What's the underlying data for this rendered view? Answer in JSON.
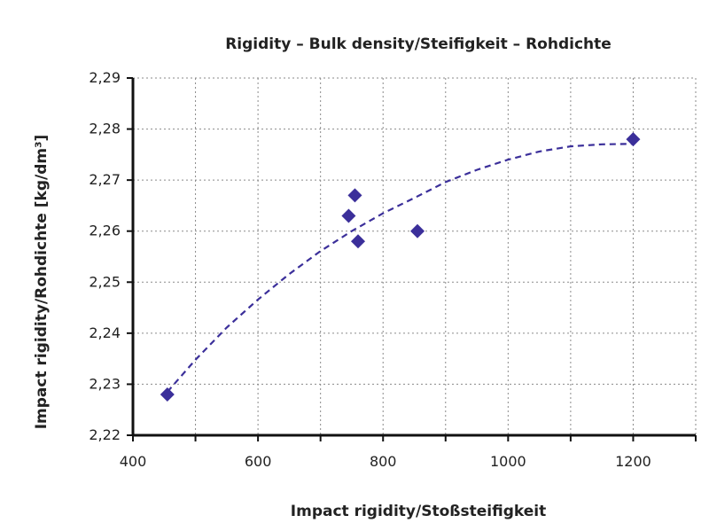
{
  "chart_data": {
    "type": "scatter",
    "title": "Rigidity – Bulk density/Steifigkeit – Rohdichte",
    "xlabel": "Impact rigidity/Stoßsteifigkeit",
    "ylabel": "Impact rigidity/Rohdichte [kg/dm³]",
    "xlim": [
      400,
      1300
    ],
    "ylim": [
      2.22,
      2.29
    ],
    "x_ticks": [
      400,
      600,
      800,
      1000,
      1200
    ],
    "x_tick_labels": [
      "400",
      "600",
      "800",
      "1000",
      "1200"
    ],
    "y_ticks": [
      2.22,
      2.23,
      2.24,
      2.25,
      2.26,
      2.27,
      2.28,
      2.29
    ],
    "y_tick_labels": [
      "2,22",
      "2,23",
      "2,24",
      "2,25",
      "2,26",
      "2,27",
      "2,28",
      "2,29"
    ],
    "grid": true,
    "marker_color": "#3b2f9a",
    "trend_color": "#3b2f9a",
    "points": [
      {
        "x": 455,
        "y": 2.228
      },
      {
        "x": 745,
        "y": 2.263
      },
      {
        "x": 755,
        "y": 2.267
      },
      {
        "x": 760,
        "y": 2.258
      },
      {
        "x": 855,
        "y": 2.26
      },
      {
        "x": 1200,
        "y": 2.278
      }
    ],
    "trendline": {
      "type": "polynomial-2",
      "x": [
        455,
        500,
        550,
        600,
        650,
        700,
        750,
        800,
        850,
        900,
        950,
        1000,
        1050,
        1100,
        1150,
        1200
      ],
      "y": [
        2.2285,
        2.2348,
        2.2411,
        2.2466,
        2.2516,
        2.2561,
        2.26,
        2.2635,
        2.2665,
        2.2696,
        2.272,
        2.274,
        2.2756,
        2.2766,
        2.277,
        2.2771
      ]
    }
  }
}
